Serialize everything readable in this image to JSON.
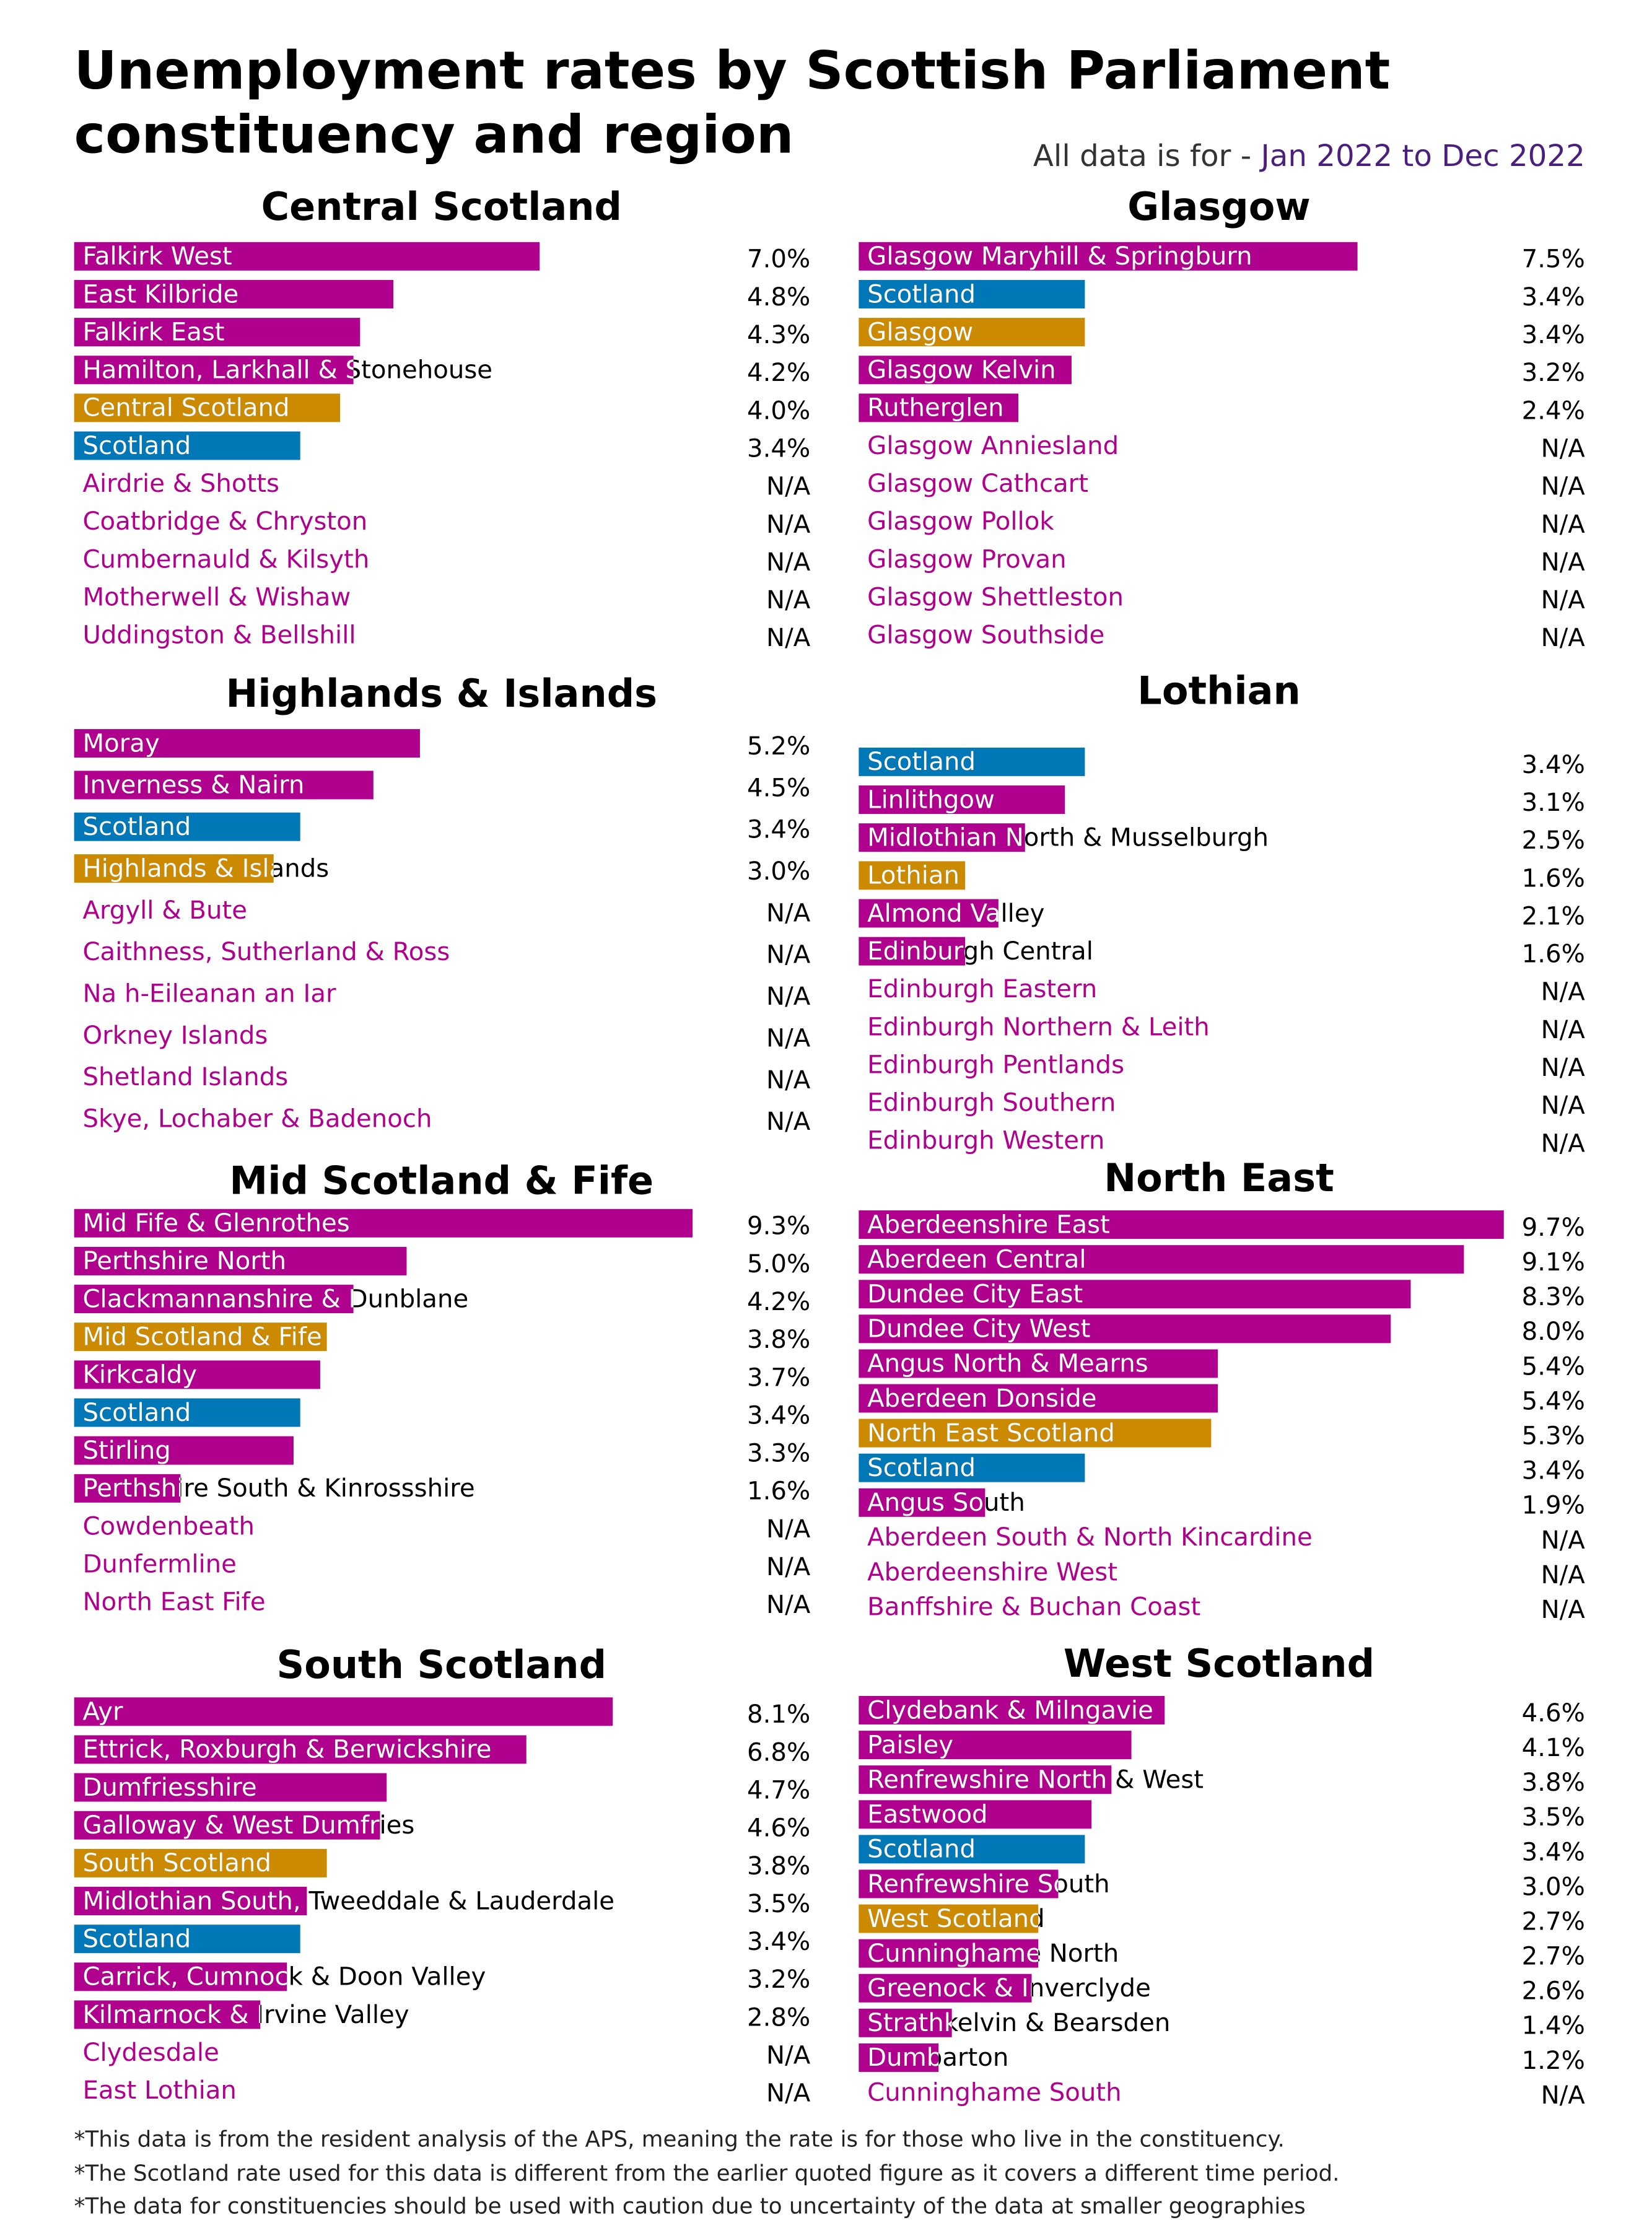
{
  "header": {
    "title": [
      "Unemployment rates by Scottish Parliament",
      "constituency and region"
    ],
    "period_label": "All data is for - ",
    "period": "Jan 2022 to Dec 2022"
  },
  "chart_data": [
    {
      "type": "bar",
      "orientation": "horizontal",
      "title": "Central Scotland",
      "categories": [
        "Falkirk West",
        "East Kilbride",
        "Falkirk East",
        "Hamilton, Larkhall & Stonehouse",
        "Central Scotland",
        "Scotland",
        "Airdrie & Shotts",
        "Coatbridge & Chryston",
        "Cumbernauld & Kilsyth",
        "Motherwell & Wishaw",
        "Uddingston & Bellshill"
      ],
      "values": [
        7.0,
        4.8,
        4.3,
        4.2,
        4.0,
        3.4,
        null,
        null,
        null,
        null,
        null
      ],
      "value_labels": [
        "7.0%",
        "4.8%",
        "4.3%",
        "4.2%",
        "4.0%",
        "3.4%",
        "N/A",
        "N/A",
        "N/A",
        "N/A",
        "N/A"
      ],
      "colors": [
        "#b0008e",
        "#b0008e",
        "#b0008e",
        "#b0008e",
        "#cc8a00",
        "#0077b6",
        "#b0008e",
        "#b0008e",
        "#b0008e",
        "#b0008e",
        "#b0008e"
      ]
    },
    {
      "type": "bar",
      "orientation": "horizontal",
      "title": "Glasgow",
      "categories": [
        "Glasgow Maryhill & Springburn",
        "Scotland",
        "Glasgow",
        "Glasgow Kelvin",
        "Rutherglen",
        "Glasgow Anniesland",
        "Glasgow Cathcart",
        "Glasgow Pollok",
        "Glasgow Provan",
        "Glasgow Shettleston",
        "Glasgow Southside"
      ],
      "values": [
        7.5,
        3.4,
        3.4,
        3.2,
        2.4,
        null,
        null,
        null,
        null,
        null,
        null
      ],
      "value_labels": [
        "7.5%",
        "3.4%",
        "3.4%",
        "3.2%",
        "2.4%",
        "N/A",
        "N/A",
        "N/A",
        "N/A",
        "N/A",
        "N/A"
      ],
      "colors": [
        "#b0008e",
        "#0077b6",
        "#cc8a00",
        "#b0008e",
        "#b0008e",
        "#b0008e",
        "#b0008e",
        "#b0008e",
        "#b0008e",
        "#b0008e",
        "#b0008e"
      ]
    },
    {
      "type": "bar",
      "orientation": "horizontal",
      "title": "Highlands & Islands",
      "categories": [
        "Moray",
        "Inverness & Nairn",
        "Scotland",
        "Highlands & Islands",
        "Argyll & Bute",
        "Caithness, Sutherland & Ross",
        "Na h-Eileanan an Iar",
        "Orkney Islands",
        "Shetland Islands",
        "Skye, Lochaber & Badenoch"
      ],
      "values": [
        5.2,
        4.5,
        3.4,
        3.0,
        null,
        null,
        null,
        null,
        null,
        null
      ],
      "value_labels": [
        "5.2%",
        "4.5%",
        "3.4%",
        "3.0%",
        "N/A",
        "N/A",
        "N/A",
        "N/A",
        "N/A",
        "N/A"
      ],
      "colors": [
        "#b0008e",
        "#b0008e",
        "#0077b6",
        "#cc8a00",
        "#b0008e",
        "#b0008e",
        "#b0008e",
        "#b0008e",
        "#b0008e",
        "#b0008e"
      ]
    },
    {
      "type": "bar",
      "orientation": "horizontal",
      "title": "Lothian",
      "categories": [
        "Scotland",
        "Linlithgow",
        "Midlothian North & Musselburgh",
        "Lothian",
        "Almond Valley",
        "Edinburgh Central",
        "Edinburgh Eastern",
        "Edinburgh Northern & Leith",
        "Edinburgh Pentlands",
        "Edinburgh Southern",
        "Edinburgh Western"
      ],
      "values": [
        3.4,
        3.1,
        2.5,
        1.6,
        2.1,
        1.6,
        null,
        null,
        null,
        null,
        null
      ],
      "value_labels": [
        "3.4%",
        "3.1%",
        "2.5%",
        "1.6%",
        "2.1%",
        "1.6%",
        "N/A",
        "N/A",
        "N/A",
        "N/A",
        "N/A"
      ],
      "colors": [
        "#0077b6",
        "#b0008e",
        "#b0008e",
        "#cc8a00",
        "#b0008e",
        "#b0008e",
        "#b0008e",
        "#b0008e",
        "#b0008e",
        "#b0008e",
        "#b0008e"
      ]
    },
    {
      "type": "bar",
      "orientation": "horizontal",
      "title": "Mid Scotland & Fife",
      "categories": [
        "Mid Fife & Glenrothes",
        "Perthshire North",
        "Clackmannanshire & Dunblane",
        "Mid Scotland & Fife",
        "Kirkcaldy",
        "Scotland",
        "Stirling",
        "Perthshire South & Kinrossshire",
        "Cowdenbeath",
        "Dunfermline",
        "North East Fife"
      ],
      "values": [
        9.3,
        5.0,
        4.2,
        3.8,
        3.7,
        3.4,
        3.3,
        1.6,
        null,
        null,
        null
      ],
      "value_labels": [
        "9.3%",
        "5.0%",
        "4.2%",
        "3.8%",
        "3.7%",
        "3.4%",
        "3.3%",
        "1.6%",
        "N/A",
        "N/A",
        "N/A"
      ],
      "colors": [
        "#b0008e",
        "#b0008e",
        "#b0008e",
        "#cc8a00",
        "#b0008e",
        "#0077b6",
        "#b0008e",
        "#b0008e",
        "#b0008e",
        "#b0008e",
        "#b0008e"
      ]
    },
    {
      "type": "bar",
      "orientation": "horizontal",
      "title": "North East",
      "categories": [
        "Aberdeenshire East",
        "Aberdeen Central",
        "Dundee City East",
        "Dundee City West",
        "Angus North & Mearns",
        "Aberdeen Donside",
        "North East Scotland",
        "Scotland",
        "Angus South",
        "Aberdeen South & North Kincardine",
        "Aberdeenshire West",
        "Banffshire & Buchan Coast"
      ],
      "values": [
        9.7,
        9.1,
        8.3,
        8.0,
        5.4,
        5.4,
        5.3,
        3.4,
        1.9,
        null,
        null,
        null
      ],
      "value_labels": [
        "9.7%",
        "9.1%",
        "8.3%",
        "8.0%",
        "5.4%",
        "5.4%",
        "5.3%",
        "3.4%",
        "1.9%",
        "N/A",
        "N/A",
        "N/A"
      ],
      "colors": [
        "#b0008e",
        "#b0008e",
        "#b0008e",
        "#b0008e",
        "#b0008e",
        "#b0008e",
        "#cc8a00",
        "#0077b6",
        "#b0008e",
        "#b0008e",
        "#b0008e",
        "#b0008e"
      ]
    },
    {
      "type": "bar",
      "orientation": "horizontal",
      "title": "South Scotland",
      "categories": [
        "Ayr",
        "Ettrick, Roxburgh & Berwickshire",
        "Dumfriesshire",
        "Galloway & West Dumfries",
        "South Scotland",
        "Midlothian South, Tweeddale & Lauderdale",
        "Scotland",
        "Carrick, Cumnock & Doon Valley",
        "Kilmarnock & Irvine Valley",
        "Clydesdale",
        "East Lothian"
      ],
      "values": [
        8.1,
        6.8,
        4.7,
        4.6,
        3.8,
        3.5,
        3.4,
        3.2,
        2.8,
        null,
        null
      ],
      "value_labels": [
        "8.1%",
        "6.8%",
        "4.7%",
        "4.6%",
        "3.8%",
        "3.5%",
        "3.4%",
        "3.2%",
        "2.8%",
        "N/A",
        "N/A"
      ],
      "colors": [
        "#b0008e",
        "#b0008e",
        "#b0008e",
        "#b0008e",
        "#cc8a00",
        "#b0008e",
        "#0077b6",
        "#b0008e",
        "#b0008e",
        "#b0008e",
        "#b0008e"
      ]
    },
    {
      "type": "bar",
      "orientation": "horizontal",
      "title": "West Scotland",
      "categories": [
        "Clydebank & Milngavie",
        "Paisley",
        "Renfrewshire North & West",
        "Eastwood",
        "Scotland",
        "Renfrewshire South",
        "West Scotland",
        "Cunninghame North",
        "Greenock & Inverclyde",
        "Strathkelvin & Bearsden",
        "Dumbarton",
        "Cunninghame South"
      ],
      "values": [
        4.6,
        4.1,
        3.8,
        3.5,
        3.4,
        3.0,
        2.7,
        2.7,
        2.6,
        1.4,
        1.2,
        null
      ],
      "value_labels": [
        "4.6%",
        "4.1%",
        "3.8%",
        "3.5%",
        "3.4%",
        "3.0%",
        "2.7%",
        "2.7%",
        "2.6%",
        "1.4%",
        "1.2%",
        "N/A"
      ],
      "colors": [
        "#b0008e",
        "#b0008e",
        "#b0008e",
        "#b0008e",
        "#0077b6",
        "#b0008e",
        "#cc8a00",
        "#b0008e",
        "#b0008e",
        "#b0008e",
        "#b0008e",
        "#b0008e"
      ]
    }
  ],
  "footnotes": [
    "*This data is from the resident analysis of the APS, meaning the rate is for those who live in the constituency.",
    "*The Scotland rate used for this data is different from the earlier quoted figure as it covers a different time period.",
    "*The data for constituencies should be used with caution due to uncertainty of the data at smaller geographies"
  ]
}
